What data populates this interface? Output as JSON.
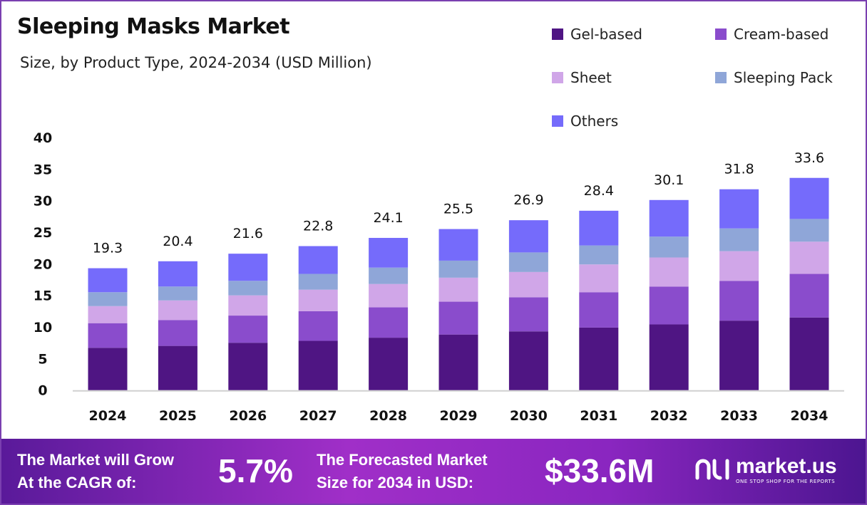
{
  "chart_data": {
    "type": "bar",
    "stacked": true,
    "title": "Sleeping Masks Market",
    "subtitle": "Size, by Product Type, 2024-2034 (USD Million)",
    "categories": [
      "2024",
      "2025",
      "2026",
      "2027",
      "2028",
      "2029",
      "2030",
      "2031",
      "2032",
      "2033",
      "2034"
    ],
    "totals": [
      "19.3",
      "20.4",
      "21.6",
      "22.8",
      "24.1",
      "25.5",
      "26.9",
      "28.4",
      "30.1",
      "31.8",
      "33.6"
    ],
    "series": [
      {
        "name": "Gel-based",
        "color": "#4f1583",
        "values": [
          6.7,
          7.0,
          7.5,
          7.8,
          8.3,
          8.8,
          9.3,
          9.9,
          10.4,
          11.0,
          11.5
        ]
      },
      {
        "name": "Cream-based",
        "color": "#8a4ccc",
        "values": [
          3.9,
          4.1,
          4.3,
          4.7,
          4.8,
          5.2,
          5.4,
          5.6,
          6.0,
          6.3,
          6.9
        ]
      },
      {
        "name": "Sheet",
        "color": "#d0a6e8",
        "values": [
          2.7,
          3.1,
          3.2,
          3.4,
          3.7,
          3.8,
          4.0,
          4.4,
          4.6,
          4.7,
          5.1
        ]
      },
      {
        "name": "Sleeping Pack",
        "color": "#8fa6d8",
        "values": [
          2.2,
          2.2,
          2.3,
          2.5,
          2.6,
          2.7,
          3.1,
          3.0,
          3.3,
          3.6,
          3.6
        ]
      },
      {
        "name": "Others",
        "color": "#756bfb",
        "values": [
          3.8,
          4.0,
          4.3,
          4.4,
          4.7,
          5.0,
          5.1,
          5.5,
          5.8,
          6.2,
          6.5
        ]
      }
    ],
    "yticks": [
      "0",
      "5",
      "10",
      "15",
      "20",
      "25",
      "30",
      "35",
      "40"
    ],
    "ylim": [
      0,
      40
    ],
    "grid": false,
    "legend_position": "top-right"
  },
  "footer": {
    "cagr_label_1": "The Market will Grow",
    "cagr_label_2": "At the CAGR of:",
    "cagr_value": "5.7%",
    "forecast_label_1": "The Forecasted Market",
    "forecast_label_2": "Size for 2034 in USD:",
    "forecast_value": "$33.6M",
    "brand": "market.us",
    "brand_tagline": "ONE STOP SHOP FOR THE REPORTS"
  }
}
